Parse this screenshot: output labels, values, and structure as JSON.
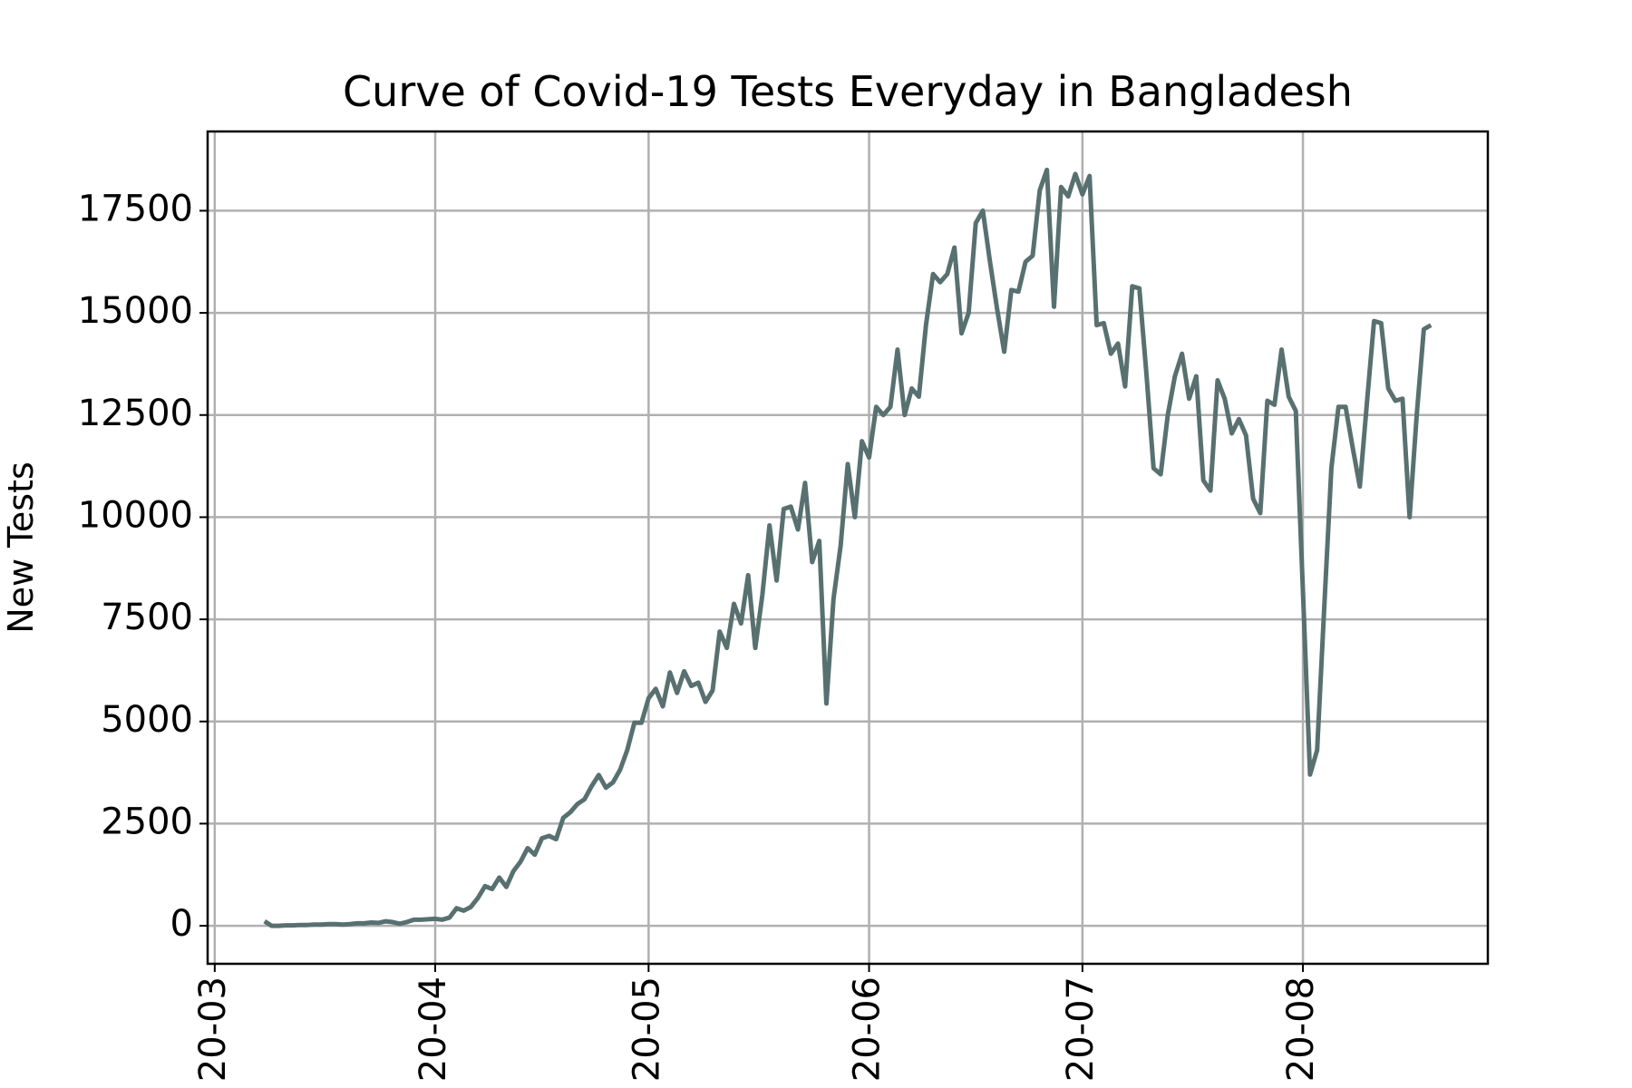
{
  "chart_data": {
    "type": "line",
    "title": "Curve of Covid-19 Tests Everyday in Bangladesh",
    "y_label": "New Tests",
    "color": "#587070",
    "grid": true,
    "x": [
      7,
      8,
      9,
      10,
      11,
      12,
      13,
      14,
      15,
      16,
      17,
      18,
      19,
      20,
      21,
      22,
      23,
      24,
      25,
      26,
      27,
      28,
      29,
      30,
      31,
      32,
      33,
      34,
      35,
      36,
      37,
      38,
      39,
      40,
      41,
      42,
      43,
      44,
      45,
      46,
      47,
      48,
      49,
      50,
      51,
      52,
      53,
      54,
      55,
      56,
      57,
      58,
      59,
      60,
      61,
      62,
      63,
      64,
      65,
      66,
      67,
      68,
      69,
      70,
      71,
      72,
      73,
      74,
      75,
      76,
      77,
      78,
      79,
      80,
      81,
      82,
      83,
      84,
      85,
      86,
      87,
      88,
      89,
      90,
      91,
      92,
      93,
      94,
      95,
      96,
      97,
      98,
      99,
      100,
      101,
      102,
      103,
      104,
      105,
      106,
      107,
      108,
      109,
      110,
      111,
      112,
      113,
      114,
      115,
      116,
      117,
      118,
      119,
      120,
      121,
      122,
      123,
      124,
      125,
      126,
      127,
      128,
      129,
      130,
      131,
      132,
      133,
      134,
      135,
      136,
      137,
      138,
      139,
      140,
      141,
      142,
      143,
      144,
      145,
      146,
      147,
      148,
      149,
      150,
      151,
      152,
      153,
      154,
      155,
      156,
      157,
      158,
      159,
      160,
      161,
      162,
      163,
      164,
      165,
      166,
      167,
      168,
      169,
      170,
      171
    ],
    "values": [
      110,
      0,
      0,
      10,
      10,
      20,
      20,
      30,
      30,
      40,
      40,
      30,
      40,
      60,
      60,
      80,
      70,
      110,
      90,
      50,
      90,
      150,
      150,
      160,
      170,
      150,
      200,
      430,
      370,
      460,
      680,
      970,
      900,
      1180,
      950,
      1340,
      1570,
      1900,
      1740,
      2140,
      2200,
      2120,
      2640,
      2780,
      2980,
      3100,
      3420,
      3690,
      3380,
      3510,
      3820,
      4300,
      4970,
      4970,
      5570,
      5800,
      5370,
      6200,
      5700,
      6230,
      5870,
      5950,
      5480,
      5760,
      7200,
      6800,
      7880,
      7400,
      8580,
      6800,
      8100,
      9800,
      8450,
      10200,
      10260,
      9700,
      10840,
      8900,
      9420,
      5440,
      8000,
      9300,
      11300,
      10000,
      11860,
      11460,
      12700,
      12500,
      12700,
      14100,
      12500,
      13150,
      12950,
      14700,
      15950,
      15750,
      15950,
      16600,
      14500,
      15000,
      17200,
      17500,
      16250,
      15100,
      14050,
      15560,
      15520,
      16250,
      16400,
      18000,
      18500,
      15150,
      18080,
      17850,
      18400,
      17900,
      18350,
      14700,
      14750,
      14000,
      14250,
      13200,
      15650,
      15600,
      13500,
      11200,
      11050,
      12500,
      13450,
      14000,
      12900,
      13450,
      10900,
      10650,
      13350,
      12900,
      12050,
      12400,
      12000,
      10450,
      10100,
      12850,
      12750,
      14100,
      12950,
      12600,
      8200,
      3700,
      4300,
      7800,
      11200,
      12700,
      12700,
      11700,
      10750,
      12800,
      14800,
      14750,
      13150,
      12850,
      12900,
      10000,
      12500,
      14600,
      14700
    ],
    "xlim": [
      -1,
      179
    ],
    "xticks": [
      {
        "value": 0,
        "label": "20-03"
      },
      {
        "value": 31,
        "label": "20-04"
      },
      {
        "value": 61,
        "label": "20-05"
      },
      {
        "value": 92,
        "label": "20-06"
      },
      {
        "value": 122,
        "label": "20-07"
      },
      {
        "value": 153,
        "label": "20-08"
      }
    ],
    "ylim": [
      -930,
      19440
    ],
    "yticks": [
      0,
      2500,
      5000,
      7500,
      10000,
      12500,
      15000,
      17500
    ]
  }
}
